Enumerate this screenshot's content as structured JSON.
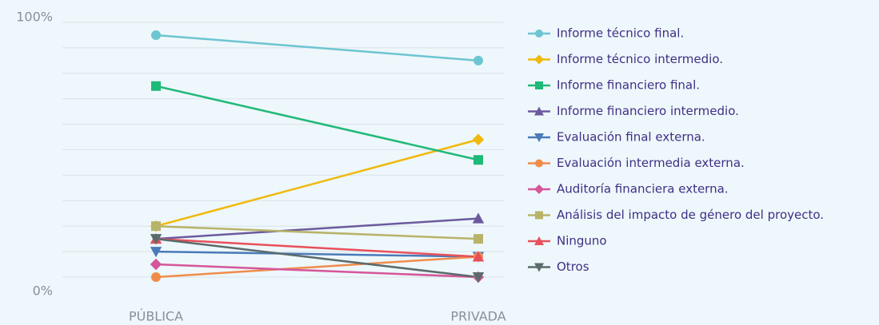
{
  "chart_data": {
    "type": "line",
    "categories": [
      "PÚBLICA",
      "PRIVADA"
    ],
    "ylim": [
      0,
      100
    ],
    "yticks": [
      {
        "value": 0,
        "label": "0%"
      },
      {
        "value": 100,
        "label": "100%"
      }
    ],
    "grid_lines": [
      0,
      10,
      20,
      30,
      40,
      50,
      60,
      70,
      80,
      90,
      100
    ],
    "legend": "right",
    "series": [
      {
        "name": "Informe técnico final.",
        "color": "#6cc5d1",
        "marker": "circle",
        "values": [
          95,
          85
        ]
      },
      {
        "name": "Informe técnico intermedio.",
        "color": "#f0b90b",
        "marker": "diamond",
        "values": [
          20,
          54
        ]
      },
      {
        "name": "Informe financiero final.",
        "color": "#1fb978",
        "marker": "square",
        "values": [
          75,
          46
        ]
      },
      {
        "name": "Informe financiero intermedio.",
        "color": "#6c5a9e",
        "marker": "triangle",
        "values": [
          15,
          23
        ]
      },
      {
        "name": "Evaluación final externa.",
        "color": "#4a7ab8",
        "marker": "triangle-down",
        "values": [
          10,
          8
        ]
      },
      {
        "name": "Evaluación intermedia externa.",
        "color": "#f08c4a",
        "marker": "circle",
        "values": [
          0,
          8
        ]
      },
      {
        "name": "Auditoría financiera externa.",
        "color": "#d5569a",
        "marker": "diamond",
        "values": [
          5,
          0
        ]
      },
      {
        "name": "Análisis del impacto de género del proyecto.",
        "color": "#b8b36a",
        "marker": "square",
        "values": [
          20,
          15
        ]
      },
      {
        "name": "Ninguno",
        "color": "#e8505b",
        "marker": "triangle",
        "values": [
          15,
          8
        ]
      },
      {
        "name": "Otros",
        "color": "#5a6b6b",
        "marker": "triangle-down",
        "values": [
          15,
          0
        ]
      }
    ]
  }
}
